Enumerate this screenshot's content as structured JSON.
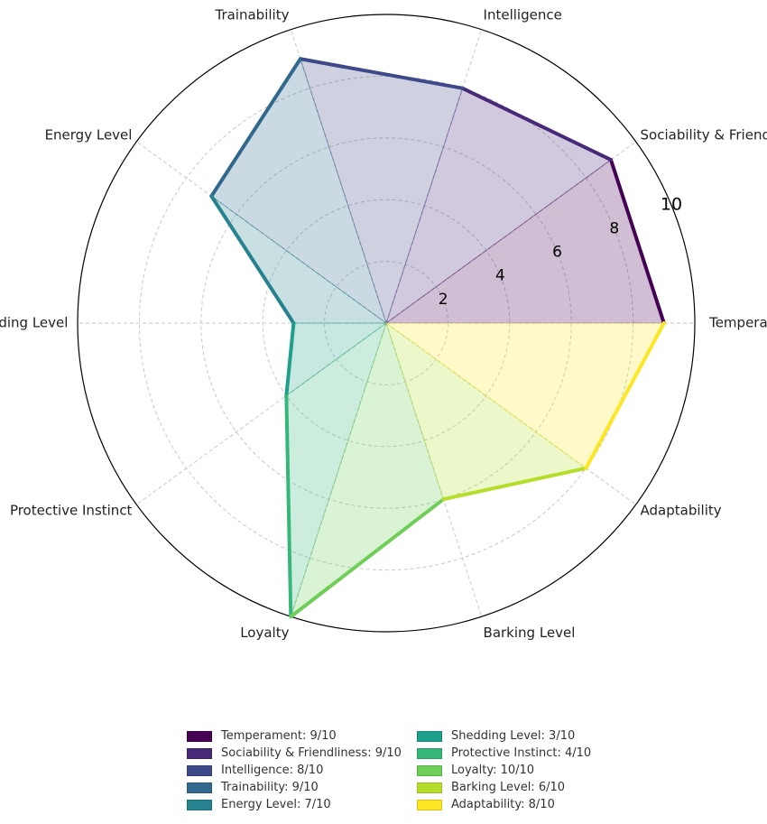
{
  "chart_data": {
    "type": "radar",
    "categories": [
      "Temperament",
      "Sociability & Friendliness",
      "Intelligence",
      "Trainability",
      "Energy Level",
      "Shedding Level",
      "Protective Instinct",
      "Loyalty",
      "Barking Level",
      "Adaptability"
    ],
    "values": [
      9,
      9,
      8,
      9,
      7,
      3,
      4,
      10,
      6,
      8
    ],
    "rlim": [
      0,
      10
    ],
    "r_ticks": [
      "2",
      "4",
      "6",
      "8",
      "10"
    ],
    "colors": [
      "#440154",
      "#482878",
      "#3e4989",
      "#31688e",
      "#26828e",
      "#1f9e89",
      "#35b779",
      "#6ece58",
      "#b5de2b",
      "#fde725"
    ],
    "grid": true,
    "legend_position": "bottom",
    "legend": [
      "Temperament: 9/10",
      "Sociability & Friendliness: 9/10",
      "Intelligence: 8/10",
      "Trainability: 9/10",
      "Energy Level: 7/10",
      "Shedding Level: 3/10",
      "Protective Instinct: 4/10",
      "Loyalty: 10/10",
      "Barking Level: 6/10",
      "Adaptability: 8/10"
    ]
  }
}
